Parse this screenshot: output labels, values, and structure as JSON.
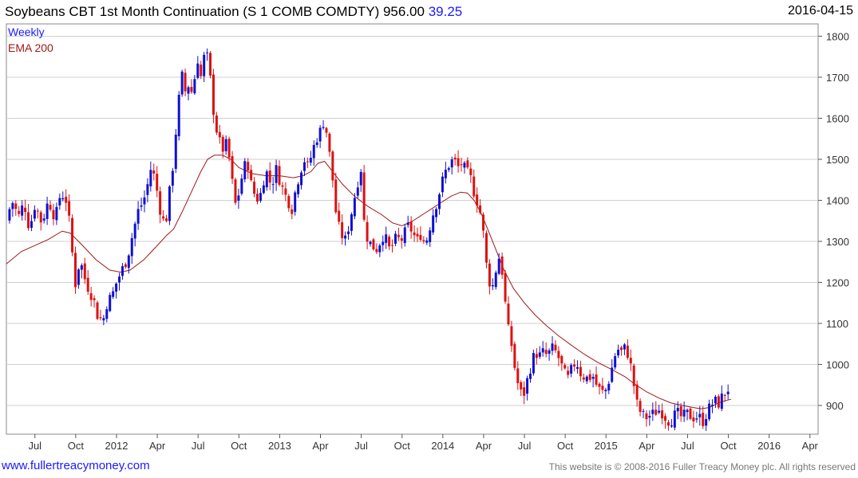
{
  "header": {
    "title": "Soybeans CBT 1st Month Continuation (S 1 COMB COMDTY) 956.00",
    "change": "39.25",
    "date": "2016-04-15"
  },
  "legend": {
    "weekly": "Weekly",
    "ema": "EMA 200"
  },
  "footer": {
    "site": "www.fullertreacymoney.com",
    "copyright": "This website is © 2008-2016 Fuller Treacy Money plc. All rights reserved"
  },
  "colors": {
    "up": "#1010d0",
    "down": "#dd1111",
    "ema": "#a01818",
    "grid": "#cfcfcf",
    "change": "#1a1aff"
  },
  "chart_data": {
    "type": "candlestick",
    "ylim": [
      830,
      1830
    ],
    "y_ticks": [
      900,
      1000,
      1100,
      1200,
      1300,
      1400,
      1500,
      1600,
      1700,
      1800
    ],
    "x_ticks": [
      {
        "label": "Jul",
        "month": 6
      },
      {
        "label": "Oct",
        "month": 9
      },
      {
        "label": "2012",
        "month": 12
      },
      {
        "label": "Apr",
        "month": 15
      },
      {
        "label": "Jul",
        "month": 18
      },
      {
        "label": "Oct",
        "month": 21
      },
      {
        "label": "2013",
        "month": 24
      },
      {
        "label": "Apr",
        "month": 27
      },
      {
        "label": "Jul",
        "month": 30
      },
      {
        "label": "Oct",
        "month": 33
      },
      {
        "label": "2014",
        "month": 36
      },
      {
        "label": "Apr",
        "month": 39
      },
      {
        "label": "Jul",
        "month": 42
      },
      {
        "label": "Oct",
        "month": 45
      },
      {
        "label": "2015",
        "month": 48
      },
      {
        "label": "Apr",
        "month": 51
      },
      {
        "label": "Jul",
        "month": 54
      },
      {
        "label": "Oct",
        "month": 57
      },
      {
        "label": "2016",
        "month": 60
      },
      {
        "label": "Apr",
        "month": 63
      }
    ],
    "x_month_range": [
      3.9,
      63.6
    ],
    "price_path": [
      [
        3.9,
        1350
      ],
      [
        4.3,
        1400
      ],
      [
        4.8,
        1360
      ],
      [
        5.2,
        1395
      ],
      [
        5.6,
        1330
      ],
      [
        6.0,
        1390
      ],
      [
        6.5,
        1345
      ],
      [
        7.0,
        1400
      ],
      [
        7.5,
        1355
      ],
      [
        7.9,
        1420
      ],
      [
        8.3,
        1400
      ],
      [
        8.6,
        1330
      ],
      [
        8.8,
        1250
      ],
      [
        9.0,
        1190
      ],
      [
        9.3,
        1260
      ],
      [
        9.6,
        1215
      ],
      [
        10.0,
        1180
      ],
      [
        10.3,
        1160
      ],
      [
        10.6,
        1120
      ],
      [
        11.0,
        1105
      ],
      [
        11.3,
        1150
      ],
      [
        11.7,
        1170
      ],
      [
        12.0,
        1200
      ],
      [
        12.4,
        1230
      ],
      [
        12.8,
        1260
      ],
      [
        13.2,
        1320
      ],
      [
        13.6,
        1375
      ],
      [
        14.0,
        1400
      ],
      [
        14.3,
        1440
      ],
      [
        14.6,
        1490
      ],
      [
        14.8,
        1450
      ],
      [
        15.0,
        1420
      ],
      [
        15.3,
        1360
      ],
      [
        15.6,
        1340
      ],
      [
        15.9,
        1420
      ],
      [
        16.1,
        1470
      ],
      [
        16.4,
        1580
      ],
      [
        16.6,
        1650
      ],
      [
        16.9,
        1720
      ],
      [
        17.1,
        1650
      ],
      [
        17.4,
        1700
      ],
      [
        17.6,
        1640
      ],
      [
        17.9,
        1760
      ],
      [
        18.2,
        1700
      ],
      [
        18.5,
        1760
      ],
      [
        18.8,
        1740
      ],
      [
        19.0,
        1650
      ],
      [
        19.3,
        1580
      ],
      [
        19.6,
        1540
      ],
      [
        19.9,
        1520
      ],
      [
        20.1,
        1540
      ],
      [
        20.3,
        1500
      ],
      [
        20.6,
        1420
      ],
      [
        20.8,
        1380
      ],
      [
        21.0,
        1420
      ],
      [
        21.3,
        1470
      ],
      [
        21.6,
        1500
      ],
      [
        21.9,
        1440
      ],
      [
        22.2,
        1410
      ],
      [
        22.5,
        1400
      ],
      [
        22.8,
        1450
      ],
      [
        23.1,
        1470
      ],
      [
        23.4,
        1430
      ],
      [
        23.7,
        1480
      ],
      [
        24.0,
        1450
      ],
      [
        24.3,
        1420
      ],
      [
        24.6,
        1400
      ],
      [
        24.9,
        1380
      ],
      [
        25.2,
        1430
      ],
      [
        25.5,
        1470
      ],
      [
        25.8,
        1500
      ],
      [
        26.1,
        1480
      ],
      [
        26.4,
        1520
      ],
      [
        26.7,
        1550
      ],
      [
        27.0,
        1570
      ],
      [
        27.3,
        1600
      ],
      [
        27.6,
        1530
      ],
      [
        27.9,
        1450
      ],
      [
        28.2,
        1350
      ],
      [
        28.5,
        1320
      ],
      [
        28.8,
        1300
      ],
      [
        29.1,
        1340
      ],
      [
        29.4,
        1390
      ],
      [
        29.7,
        1440
      ],
      [
        30.0,
        1480
      ],
      [
        30.2,
        1350
      ],
      [
        30.5,
        1300
      ],
      [
        30.8,
        1290
      ],
      [
        31.1,
        1280
      ],
      [
        31.4,
        1300
      ],
      [
        31.7,
        1320
      ],
      [
        32.0,
        1280
      ],
      [
        32.3,
        1290
      ],
      [
        32.6,
        1310
      ],
      [
        32.9,
        1300
      ],
      [
        33.2,
        1320
      ],
      [
        33.5,
        1340
      ],
      [
        33.8,
        1320
      ],
      [
        34.1,
        1300
      ],
      [
        34.4,
        1320
      ],
      [
        34.7,
        1290
      ],
      [
        35.0,
        1330
      ],
      [
        35.3,
        1370
      ],
      [
        35.6,
        1400
      ],
      [
        35.9,
        1440
      ],
      [
        36.2,
        1470
      ],
      [
        36.5,
        1490
      ],
      [
        36.8,
        1500
      ],
      [
        37.1,
        1480
      ],
      [
        37.4,
        1490
      ],
      [
        37.7,
        1470
      ],
      [
        38.0,
        1460
      ],
      [
        38.3,
        1420
      ],
      [
        38.6,
        1390
      ],
      [
        38.9,
        1350
      ],
      [
        39.1,
        1270
      ],
      [
        39.3,
        1220
      ],
      [
        39.6,
        1180
      ],
      [
        39.9,
        1230
      ],
      [
        40.2,
        1270
      ],
      [
        40.5,
        1190
      ],
      [
        40.7,
        1100
      ],
      [
        41.0,
        1060
      ],
      [
        41.3,
        990
      ],
      [
        41.6,
        940
      ],
      [
        41.9,
        920
      ],
      [
        42.2,
        960
      ],
      [
        42.5,
        1000
      ],
      [
        42.8,
        1030
      ],
      [
        43.1,
        1020
      ],
      [
        43.4,
        1030
      ],
      [
        43.7,
        1020
      ],
      [
        44.0,
        1040
      ],
      [
        44.3,
        1030
      ],
      [
        44.6,
        1010
      ],
      [
        44.9,
        980
      ],
      [
        45.2,
        965
      ],
      [
        45.5,
        990
      ],
      [
        45.8,
        1010
      ],
      [
        46.1,
        980
      ],
      [
        46.4,
        970
      ],
      [
        46.7,
        965
      ],
      [
        47.0,
        975
      ],
      [
        47.3,
        950
      ],
      [
        47.6,
        935
      ],
      [
        47.9,
        930
      ],
      [
        48.2,
        960
      ],
      [
        48.5,
        1000
      ],
      [
        48.8,
        1040
      ],
      [
        49.1,
        1030
      ],
      [
        49.4,
        1040
      ],
      [
        49.7,
        1020
      ],
      [
        50.0,
        960
      ],
      [
        50.3,
        900
      ],
      [
        50.6,
        880
      ],
      [
        50.9,
        870
      ],
      [
        51.2,
        875
      ],
      [
        51.5,
        880
      ],
      [
        51.8,
        890
      ],
      [
        52.1,
        885
      ],
      [
        52.4,
        870
      ],
      [
        52.7,
        860
      ],
      [
        53.0,
        875
      ],
      [
        53.3,
        880
      ],
      [
        53.6,
        870
      ],
      [
        53.9,
        880
      ],
      [
        54.2,
        875
      ],
      [
        54.5,
        870
      ],
      [
        54.8,
        875
      ],
      [
        55.1,
        860
      ],
      [
        55.4,
        880
      ],
      [
        55.7,
        900
      ],
      [
        56.0,
        910
      ],
      [
        56.3,
        905
      ],
      [
        56.6,
        925
      ],
      [
        56.9,
        935
      ],
      [
        57.2,
        956
      ]
    ],
    "ema_path": [
      [
        3.9,
        1245
      ],
      [
        5.0,
        1275
      ],
      [
        6.0,
        1290
      ],
      [
        7.0,
        1305
      ],
      [
        8.0,
        1325
      ],
      [
        8.6,
        1320
      ],
      [
        9.5,
        1290
      ],
      [
        10.5,
        1255
      ],
      [
        11.5,
        1230
      ],
      [
        12.3,
        1225
      ],
      [
        13.0,
        1230
      ],
      [
        14.0,
        1255
      ],
      [
        15.0,
        1290
      ],
      [
        15.7,
        1315
      ],
      [
        16.2,
        1330
      ],
      [
        16.8,
        1370
      ],
      [
        17.5,
        1420
      ],
      [
        18.2,
        1470
      ],
      [
        18.7,
        1500
      ],
      [
        19.2,
        1510
      ],
      [
        19.8,
        1510
      ],
      [
        20.4,
        1500
      ],
      [
        21.0,
        1480
      ],
      [
        22.0,
        1465
      ],
      [
        23.0,
        1460
      ],
      [
        24.0,
        1460
      ],
      [
        25.0,
        1455
      ],
      [
        25.7,
        1460
      ],
      [
        26.3,
        1470
      ],
      [
        26.8,
        1490
      ],
      [
        27.3,
        1495
      ],
      [
        27.9,
        1470
      ],
      [
        28.6,
        1440
      ],
      [
        29.5,
        1410
      ],
      [
        30.5,
        1385
      ],
      [
        31.5,
        1365
      ],
      [
        32.3,
        1345
      ],
      [
        33.0,
        1338
      ],
      [
        33.8,
        1350
      ],
      [
        34.5,
        1365
      ],
      [
        35.2,
        1380
      ],
      [
        35.9,
        1395
      ],
      [
        36.6,
        1410
      ],
      [
        37.3,
        1420
      ],
      [
        37.8,
        1418
      ],
      [
        38.3,
        1400
      ],
      [
        38.8,
        1370
      ],
      [
        39.3,
        1330
      ],
      [
        39.9,
        1280
      ],
      [
        40.5,
        1230
      ],
      [
        41.2,
        1185
      ],
      [
        42.0,
        1150
      ],
      [
        42.8,
        1120
      ],
      [
        43.6,
        1095
      ],
      [
        44.5,
        1070
      ],
      [
        45.4,
        1048
      ],
      [
        46.4,
        1025
      ],
      [
        47.4,
        1005
      ],
      [
        48.4,
        988
      ],
      [
        49.4,
        970
      ],
      [
        50.2,
        950
      ],
      [
        51.0,
        933
      ],
      [
        51.9,
        918
      ],
      [
        52.8,
        906
      ],
      [
        53.6,
        900
      ],
      [
        54.4,
        895
      ],
      [
        55.0,
        892
      ],
      [
        55.6,
        895
      ],
      [
        56.2,
        905
      ],
      [
        56.8,
        912
      ],
      [
        57.2,
        915
      ]
    ]
  }
}
